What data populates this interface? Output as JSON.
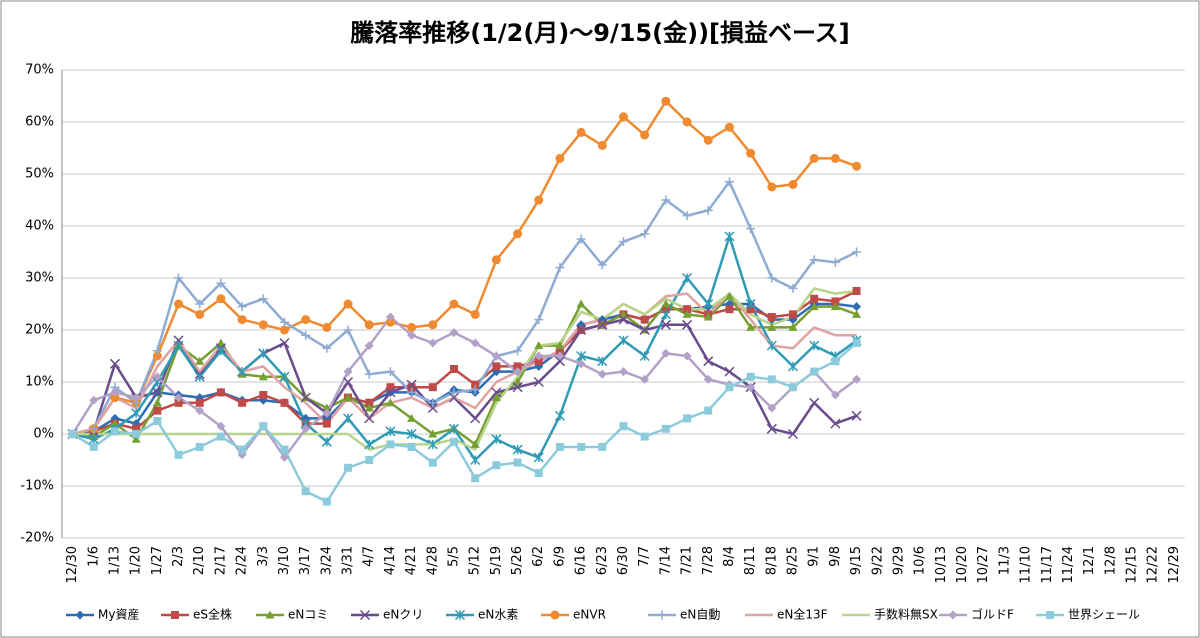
{
  "chart_data": {
    "type": "line",
    "title": "騰落率推移(1/2(月)～9/15(金))[損益ベース]",
    "categories": [
      "12/30",
      "1/6",
      "1/13",
      "1/20",
      "1/27",
      "2/3",
      "2/10",
      "2/17",
      "2/24",
      "3/3",
      "3/10",
      "3/17",
      "3/24",
      "3/31",
      "4/7",
      "4/14",
      "4/21",
      "4/28",
      "5/5",
      "5/12",
      "5/19",
      "5/26",
      "6/2",
      "6/9",
      "6/16",
      "6/23",
      "6/30",
      "7/7",
      "7/14",
      "7/21",
      "7/28",
      "8/4",
      "8/11",
      "8/18",
      "8/25",
      "9/1",
      "9/8",
      "9/15",
      "9/22",
      "9/29",
      "10/6",
      "10/13",
      "10/20",
      "10/27",
      "11/3",
      "11/10",
      "11/17",
      "11/24",
      "12/1",
      "12/8",
      "12/15",
      "12/22",
      "12/29"
    ],
    "ylim": [
      -20,
      70
    ],
    "yticks": [
      {
        "value": -20,
        "label": "-20%"
      },
      {
        "value": -10,
        "label": "-10%"
      },
      {
        "value": 0,
        "label": "0%"
      },
      {
        "value": 10,
        "label": "10%"
      },
      {
        "value": 20,
        "label": "20%"
      },
      {
        "value": 30,
        "label": "30%"
      },
      {
        "value": 40,
        "label": "40%"
      },
      {
        "value": 50,
        "label": "50%"
      },
      {
        "value": 60,
        "label": "60%"
      },
      {
        "value": 70,
        "label": "70%"
      }
    ],
    "grid": true,
    "legend": "bottom",
    "series": [
      {
        "name": "My資産",
        "color": "#2e6bb5",
        "marker": "diamond",
        "values": [
          0,
          0.5,
          3,
          2,
          8,
          7.5,
          7,
          8,
          6.5,
          6.5,
          6,
          3,
          3,
          7,
          6,
          8,
          8,
          6,
          8.5,
          8,
          12,
          12,
          13,
          16,
          21,
          22,
          23,
          22,
          24,
          24,
          24.5,
          25,
          25,
          22,
          22,
          25,
          25,
          24.5,
          null,
          null,
          null,
          null,
          null,
          null,
          null,
          null,
          null,
          null,
          null,
          null,
          null,
          null,
          null
        ]
      },
      {
        "name": "eS全株",
        "color": "#be4b48",
        "marker": "square",
        "values": [
          0,
          0.5,
          2,
          1,
          4.5,
          6,
          6,
          8,
          6,
          7.5,
          6,
          2,
          2,
          7,
          6,
          9,
          9,
          9,
          12.5,
          9.5,
          13,
          13,
          14,
          16,
          20,
          21,
          23,
          22,
          24,
          24,
          23,
          24,
          24,
          22.5,
          23,
          26,
          25.5,
          27.5,
          null,
          null,
          null,
          null,
          null,
          null,
          null,
          null,
          null,
          null,
          null,
          null,
          null,
          null,
          null
        ]
      },
      {
        "name": "eNコミ",
        "color": "#77a033",
        "marker": "triangle",
        "values": [
          0,
          -0.5,
          2,
          -1,
          6,
          17,
          14,
          17.5,
          11.5,
          11,
          11,
          7,
          5,
          7,
          5,
          6,
          3,
          0,
          1,
          -2,
          7,
          10,
          17,
          17,
          25,
          21,
          23,
          20,
          25,
          23,
          22.5,
          26.5,
          20.5,
          20.5,
          20.5,
          24.5,
          24.5,
          23,
          null,
          null,
          null,
          null,
          null,
          null,
          null,
          null,
          null,
          null,
          null,
          null,
          null,
          null,
          null
        ]
      },
      {
        "name": "eNクリ",
        "color": "#6a4c8c",
        "marker": "x",
        "values": [
          0,
          0.5,
          13.5,
          7,
          8,
          18,
          11.5,
          16.5,
          12,
          15.5,
          17.5,
          7,
          4,
          10,
          3,
          8,
          9.5,
          5,
          7,
          3,
          8,
          9,
          10,
          14,
          20,
          21,
          22,
          20,
          21,
          21,
          14,
          12,
          9,
          1,
          0,
          6,
          2,
          3.5,
          null,
          null,
          null,
          null,
          null,
          null,
          null,
          null,
          null,
          null,
          null,
          null,
          null,
          null,
          null
        ]
      },
      {
        "name": "eN水素",
        "color": "#2f9bb5",
        "marker": "star",
        "values": [
          0,
          -1,
          1,
          4,
          10,
          17,
          11,
          16,
          12,
          15.5,
          11,
          2,
          -1.5,
          3,
          -2,
          0.5,
          0,
          -2,
          1,
          -5,
          -1,
          -3,
          -4.5,
          3.5,
          15,
          14,
          18,
          15,
          23,
          30,
          25,
          38,
          25,
          17,
          13,
          17,
          15,
          18,
          null,
          null,
          null,
          null,
          null,
          null,
          null,
          null,
          null,
          null,
          null,
          null,
          null,
          null,
          null
        ]
      },
      {
        "name": "eNVR",
        "color": "#f08a30",
        "marker": "circle",
        "values": [
          0,
          1,
          7,
          6,
          15,
          25,
          23,
          26,
          22,
          21,
          20,
          22,
          20.5,
          25,
          21,
          21.5,
          20.5,
          21,
          25,
          23,
          33.5,
          38.5,
          45,
          53,
          58,
          55.5,
          61,
          57.5,
          64,
          60,
          56.5,
          59,
          54,
          47.5,
          48,
          53,
          53,
          51.5,
          null,
          null,
          null,
          null,
          null,
          null,
          null,
          null,
          null,
          null,
          null,
          null,
          null,
          null,
          null
        ]
      },
      {
        "name": "eN自動",
        "color": "#8eabd4",
        "marker": "plus",
        "values": [
          0,
          1,
          9,
          6,
          16,
          30,
          25,
          29,
          24.5,
          26,
          21.5,
          19,
          16.5,
          20,
          11.5,
          12,
          8,
          6,
          8,
          8.5,
          15,
          16,
          22,
          32,
          37.5,
          32.5,
          37,
          38.5,
          45,
          42,
          43,
          48.5,
          39.5,
          30,
          28,
          33.5,
          33,
          35,
          null,
          null,
          null,
          null,
          null,
          null,
          null,
          null,
          null,
          null,
          null,
          null,
          null,
          null,
          null
        ]
      },
      {
        "name": "eN全13F",
        "color": "#e0a3a2",
        "marker": "none",
        "values": [
          0,
          1,
          7,
          5,
          13,
          18,
          12,
          17,
          12,
          13,
          9,
          6,
          2,
          7,
          3,
          6,
          7,
          5,
          7,
          5,
          10,
          12,
          14,
          16,
          21,
          22,
          25,
          23,
          26.5,
          27,
          23,
          27,
          22,
          17,
          16.5,
          20.5,
          19,
          19,
          null,
          null,
          null,
          null,
          null,
          null,
          null,
          null,
          null,
          null,
          null,
          null,
          null,
          null,
          null
        ]
      },
      {
        "name": "手数料無SX",
        "color": "#b9d48a",
        "marker": "none",
        "values": [
          0,
          0,
          0,
          0,
          0,
          0,
          0,
          0,
          0,
          0,
          0,
          0,
          0,
          0,
          -3,
          -2,
          -2,
          -2,
          -1,
          -3,
          6,
          11,
          17,
          17.5,
          23.5,
          22,
          25,
          23,
          26,
          24,
          24,
          27,
          23,
          21,
          22.5,
          28,
          27,
          27.5,
          null,
          null,
          null,
          null,
          null,
          null,
          null,
          null,
          null,
          null,
          null,
          null,
          null,
          null,
          null
        ]
      },
      {
        "name": "ゴルドF",
        "color": "#b3a2c7",
        "marker": "diamond",
        "values": [
          0,
          6.5,
          8,
          7,
          11,
          7,
          4.5,
          1.5,
          -4,
          1.5,
          -4.5,
          1,
          4,
          12,
          17,
          22.5,
          19,
          17.5,
          19.5,
          17.5,
          15,
          12,
          15,
          15,
          13.5,
          11.5,
          12,
          10.5,
          15.5,
          15,
          10.5,
          9.5,
          9,
          5,
          9,
          12,
          7.5,
          10.5,
          null,
          null,
          null,
          null,
          null,
          null,
          null,
          null,
          null,
          null,
          null,
          null,
          null,
          null,
          null
        ]
      },
      {
        "name": "世界シェール",
        "color": "#8ccbdc",
        "marker": "square",
        "values": [
          0,
          -2.5,
          0.5,
          0,
          2.5,
          -4,
          -2.5,
          -0.5,
          -3,
          1.5,
          -3,
          -11,
          -13,
          -6.5,
          -5,
          -2,
          -2.5,
          -5.5,
          -1.5,
          -8.5,
          -6,
          -5.5,
          -7.5,
          -2.5,
          -2.5,
          -2.5,
          1.5,
          -0.5,
          1,
          3,
          4.5,
          9,
          11,
          10.5,
          9,
          12,
          14,
          17.5,
          null,
          null,
          null,
          null,
          null,
          null,
          null,
          null,
          null,
          null,
          null,
          null,
          null,
          null,
          null
        ]
      }
    ]
  }
}
